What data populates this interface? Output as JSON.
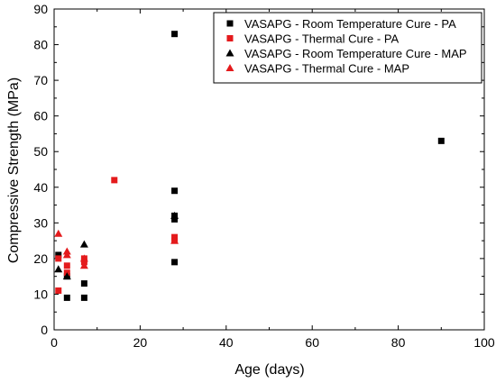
{
  "chart_data": {
    "type": "scatter",
    "title": "",
    "xlabel": "Age (days)",
    "ylabel": "Compressive Strength (MPa)",
    "xlim": [
      0,
      100
    ],
    "ylim": [
      0,
      90
    ],
    "xticks": [
      0,
      20,
      40,
      60,
      80,
      100
    ],
    "yticks": [
      0,
      10,
      20,
      30,
      40,
      50,
      60,
      70,
      80,
      90
    ],
    "grid": false,
    "legend_position": "top-right",
    "series": [
      {
        "name": "VASAPG - Room Temperature Cure - PA",
        "marker": "square",
        "color": "#000000",
        "points": [
          [
            1,
            21
          ],
          [
            3,
            9
          ],
          [
            3,
            15
          ],
          [
            7,
            13
          ],
          [
            7,
            9
          ],
          [
            28,
            83
          ],
          [
            28,
            39
          ],
          [
            28,
            32
          ],
          [
            28,
            31
          ],
          [
            28,
            19
          ],
          [
            90,
            53
          ]
        ]
      },
      {
        "name": "VASAPG - Thermal Cure - PA",
        "marker": "square",
        "color": "#e41a1c",
        "points": [
          [
            1,
            20
          ],
          [
            1,
            11
          ],
          [
            3,
            18
          ],
          [
            3,
            16
          ],
          [
            7,
            20
          ],
          [
            7,
            19
          ],
          [
            14,
            42
          ],
          [
            28,
            26
          ],
          [
            28,
            25
          ]
        ]
      },
      {
        "name": "VASAPG - Room Temperature Cure - MAP",
        "marker": "triangle",
        "color": "#000000",
        "points": [
          [
            1,
            17
          ],
          [
            3,
            15
          ],
          [
            7,
            24
          ],
          [
            28,
            32
          ]
        ]
      },
      {
        "name": "VASAPG - Thermal Cure - MAP",
        "marker": "triangle",
        "color": "#e41a1c",
        "points": [
          [
            1,
            27
          ],
          [
            3,
            22
          ],
          [
            3,
            21
          ],
          [
            7,
            20
          ],
          [
            7,
            18
          ],
          [
            28,
            25
          ]
        ]
      }
    ]
  }
}
